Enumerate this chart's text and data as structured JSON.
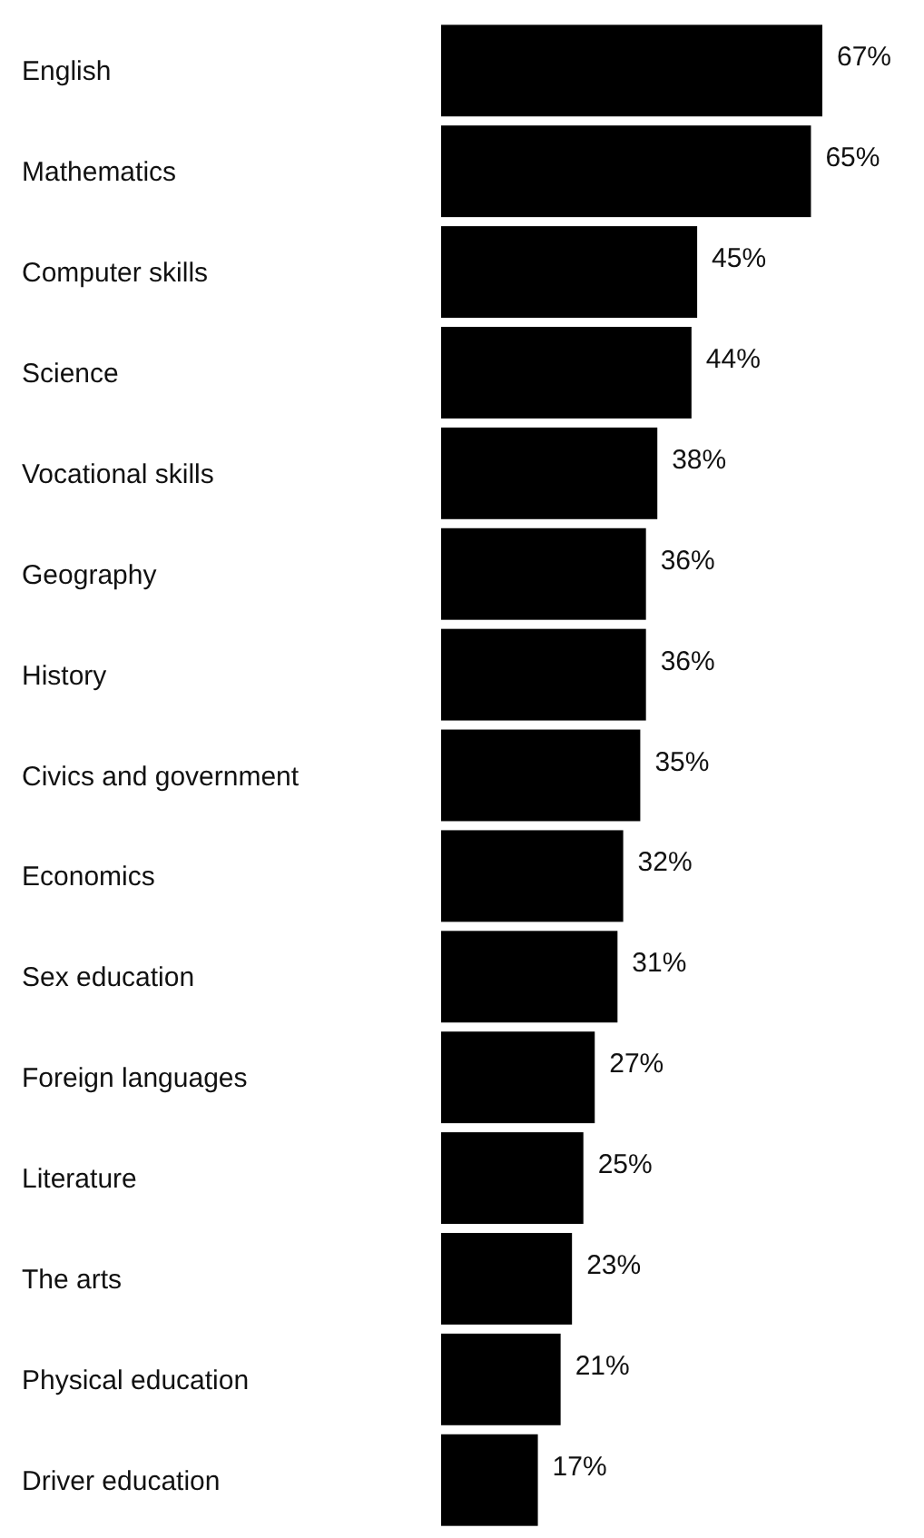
{
  "chart_data": {
    "type": "bar",
    "orientation": "horizontal",
    "color": "#000000",
    "categories": [
      "English",
      "Mathematics",
      "Computer skills",
      "Science",
      "Vocational skills",
      "Geography",
      "History",
      "Civics and government",
      "Economics",
      "Sex education",
      "Foreign languages",
      "Literature",
      "The arts",
      "Physical education",
      "Driver education"
    ],
    "values": [
      67,
      65,
      45,
      44,
      38,
      36,
      36,
      35,
      32,
      31,
      27,
      25,
      23,
      21,
      17
    ],
    "value_labels": [
      "67%",
      "65%",
      "45%",
      "44%",
      "38%",
      "36%",
      "36%",
      "35%",
      "32%",
      "31%",
      "27%",
      "25%",
      "23%",
      "21%",
      "17%"
    ]
  }
}
